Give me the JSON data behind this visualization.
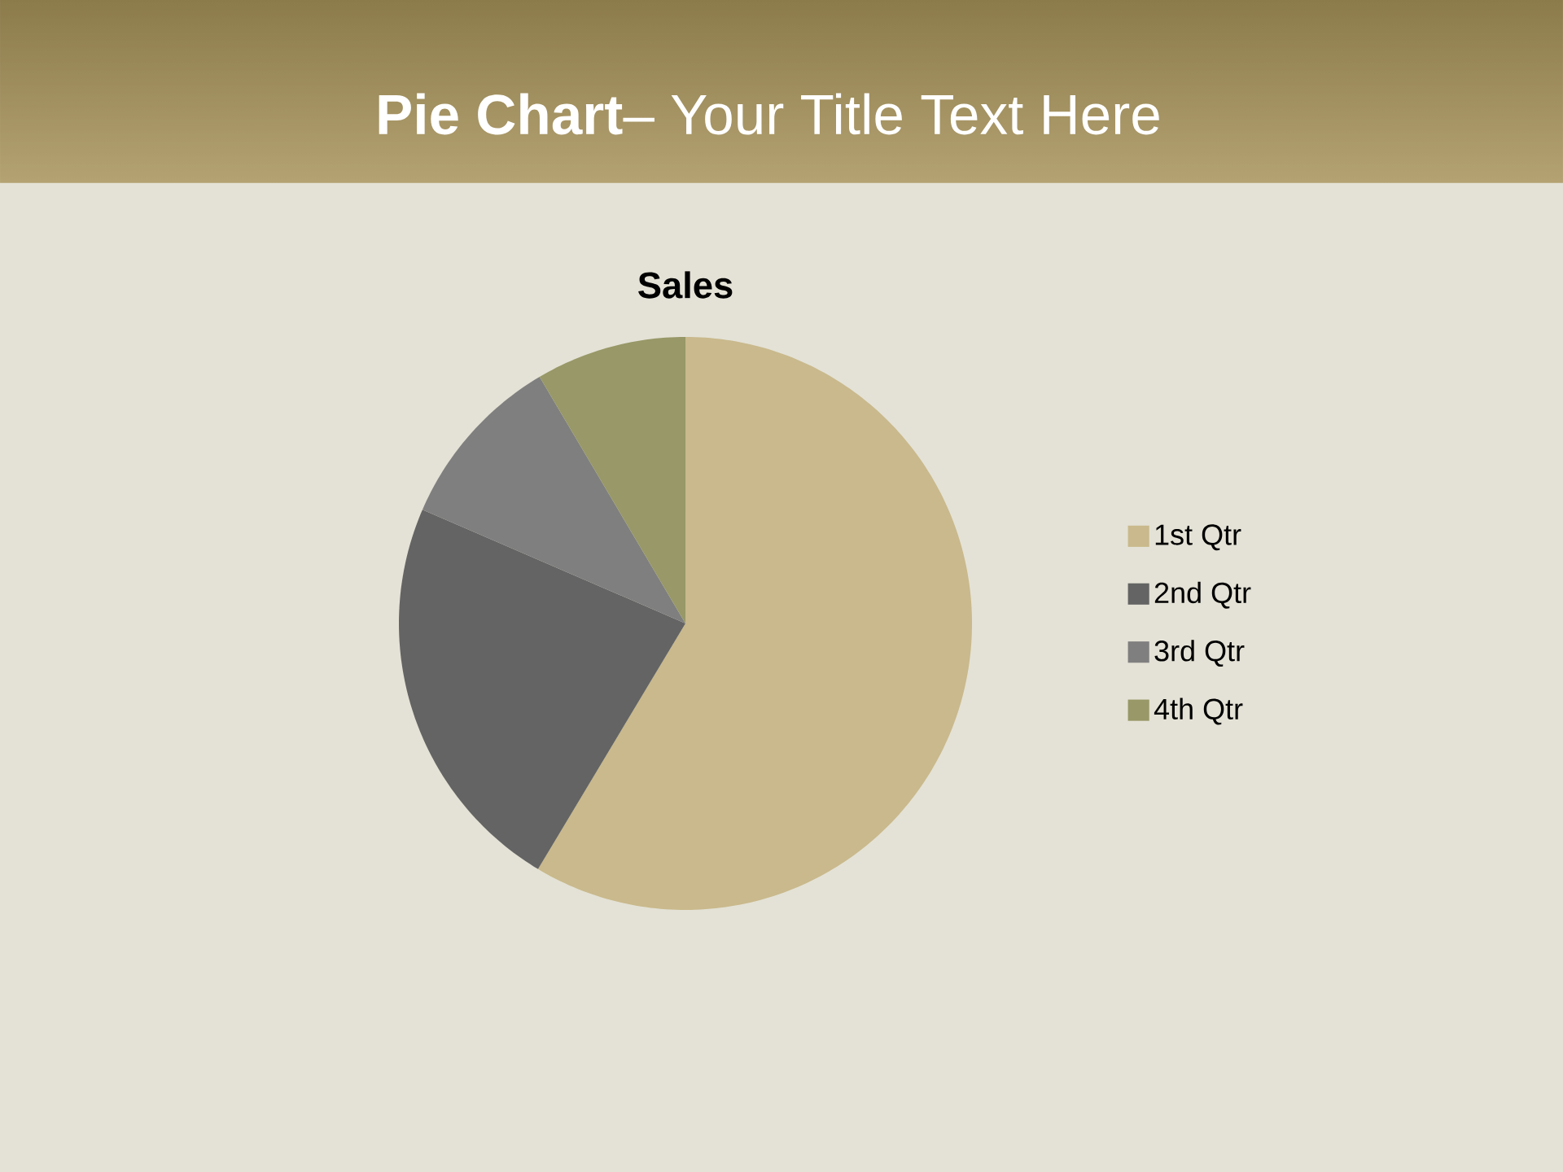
{
  "chart_data": {
    "type": "pie",
    "title": "**Pie Chart**– Your Title Text Here",
    "subtitle": "Sales",
    "categories": [
      "1st Qtr",
      "2nd Qtr",
      "3rd Qtr",
      "4th Qtr"
    ],
    "values": [
      58.6,
      22.9,
      10.0,
      8.5
    ],
    "colors": [
      "#c9b98c",
      "#646464",
      "#7f7f7f",
      "#989868"
    ],
    "legend": "right"
  }
}
